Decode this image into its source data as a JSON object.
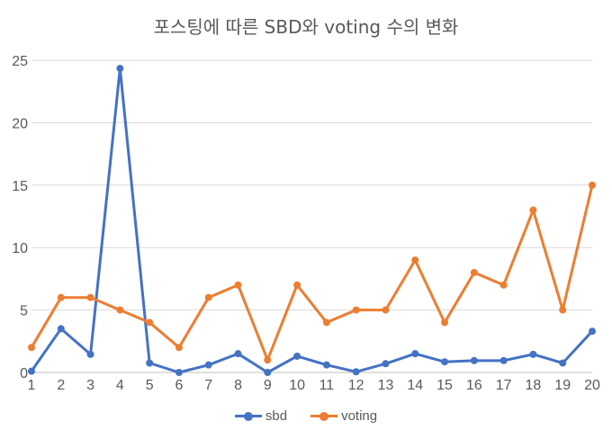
{
  "chart_data": {
    "type": "line",
    "title": "포스팅에 따른 SBD와  voting 수의 변화",
    "xlabel": "",
    "ylabel": "",
    "categories": [
      "1",
      "2",
      "3",
      "4",
      "5",
      "6",
      "7",
      "8",
      "9",
      "10",
      "11",
      "12",
      "13",
      "14",
      "15",
      "16",
      "17",
      "18",
      "19",
      "20"
    ],
    "ylim": [
      0,
      25
    ],
    "yticks": [
      0,
      5,
      10,
      15,
      20,
      25
    ],
    "grid": true,
    "legend": "bottom",
    "series": [
      {
        "name": "sbd",
        "color": "#4472C4",
        "values": [
          0.1,
          3.5,
          1.45,
          24.35,
          0.75,
          0,
          0.6,
          1.5,
          0,
          1.3,
          0.6,
          0.05,
          0.7,
          1.5,
          0.85,
          0.95,
          0.95,
          1.45,
          0.75,
          3.3
        ]
      },
      {
        "name": "voting",
        "color": "#ED7D31",
        "values": [
          2,
          6,
          6,
          5,
          4,
          2,
          6,
          7,
          1,
          7,
          4,
          5,
          5,
          9,
          4,
          8,
          7,
          13,
          5,
          15
        ]
      }
    ]
  }
}
